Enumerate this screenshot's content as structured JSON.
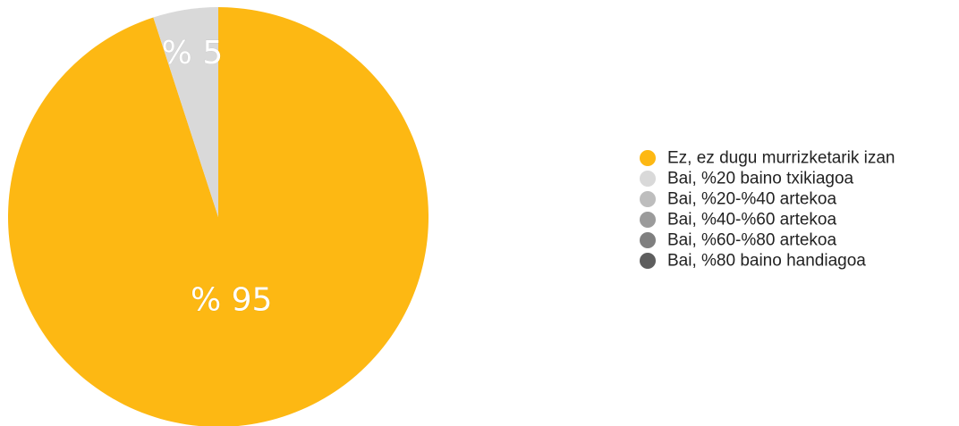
{
  "chart_data": {
    "type": "pie",
    "title": "",
    "start_angle_deg": 0,
    "direction": "clockwise",
    "legend_position": "right",
    "slices": [
      {
        "label": "Ez, ez dugu murrizketarik izan",
        "value": 95,
        "value_label": "% 95",
        "color": "#FDB813"
      },
      {
        "label": "Bai, %20 baino txikiagoa",
        "value": 5,
        "value_label": "% 5",
        "color": "#D9D9D9"
      },
      {
        "label": "Bai, %20-%40 artekoa",
        "value": 0,
        "value_label": "",
        "color": "#BDBDBD"
      },
      {
        "label": "Bai, %40-%60 artekoa",
        "value": 0,
        "value_label": "",
        "color": "#9B9B9B"
      },
      {
        "label": "Bai, %60-%80 artekoa",
        "value": 0,
        "value_label": "",
        "color": "#7F7F7F"
      },
      {
        "label": "Bai, %80 baino handiagoa",
        "value": 0,
        "value_label": "",
        "color": "#5E5E5E"
      }
    ]
  }
}
